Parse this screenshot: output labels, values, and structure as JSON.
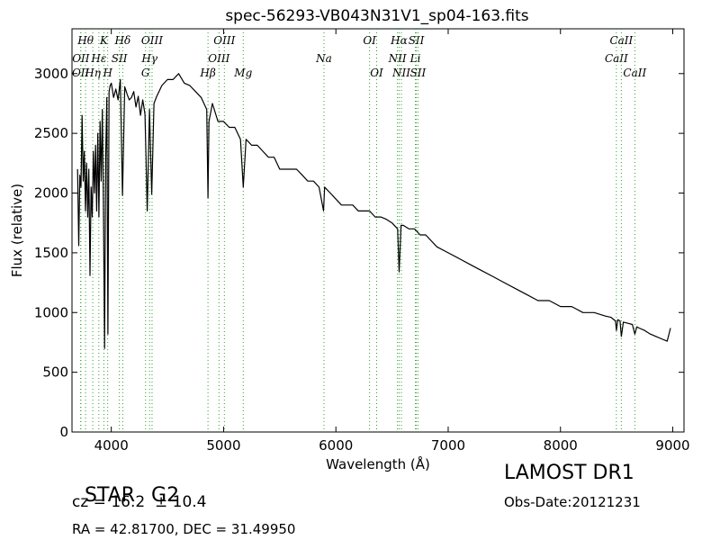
{
  "chart_data": {
    "type": "line",
    "title": "spec-56293-VB043N31V1_sp04-163.fits",
    "xlabel": "Wavelength (Å)",
    "ylabel": "Flux (relative)",
    "xlim": [
      3650,
      9100
    ],
    "ylim": [
      0,
      3375
    ],
    "xticks": [
      4000,
      5000,
      6000,
      7000,
      8000,
      9000
    ],
    "yticks": [
      0,
      500,
      1000,
      1500,
      2000,
      2500,
      3000
    ],
    "grid": false,
    "line_color": "#000000",
    "marker_color": "#2ca02c",
    "series": [
      {
        "x": [
          3700,
          3710,
          3720,
          3730,
          3740,
          3750,
          3760,
          3770,
          3780,
          3790,
          3800,
          3810,
          3820,
          3830,
          3840,
          3850,
          3860,
          3870,
          3880,
          3890,
          3900,
          3910,
          3920,
          3930,
          3940,
          3950,
          3960,
          3970,
          3980,
          3990,
          4000,
          4020,
          4040,
          4060,
          4080,
          4100,
          4120,
          4140,
          4160,
          4180,
          4200,
          4220,
          4240,
          4260,
          4280,
          4300,
          4320,
          4340,
          4360,
          4380,
          4400,
          4450,
          4500,
          4550,
          4600,
          4650,
          4700,
          4750,
          4800,
          4850,
          4861,
          4870,
          4900,
          4950,
          5000,
          5050,
          5100,
          5150,
          5175,
          5200,
          5250,
          5300,
          5350,
          5400,
          5450,
          5500,
          5550,
          5600,
          5650,
          5700,
          5750,
          5800,
          5850,
          5890,
          5900,
          5950,
          6000,
          6050,
          6100,
          6150,
          6200,
          6250,
          6300,
          6350,
          6400,
          6450,
          6500,
          6550,
          6563,
          6580,
          6600,
          6650,
          6700,
          6750,
          6800,
          6900,
          7000,
          7100,
          7200,
          7300,
          7400,
          7500,
          7600,
          7700,
          7800,
          7900,
          8000,
          8100,
          8200,
          8300,
          8400,
          8450,
          8490,
          8498,
          8510,
          8530,
          8542,
          8560,
          8600,
          8640,
          8662,
          8680,
          8700,
          8750,
          8800,
          8850,
          8900,
          8950,
          8980
        ],
        "y": [
          2200,
          1560,
          2150,
          2050,
          2650,
          2100,
          2350,
          1850,
          2250,
          1800,
          2200,
          1310,
          2050,
          1800,
          2350,
          2000,
          2400,
          1850,
          2500,
          1800,
          2600,
          2100,
          2700,
          1900,
          700,
          2300,
          2800,
          820,
          2850,
          2900,
          2920,
          2800,
          2870,
          2780,
          2950,
          1980,
          2890,
          2830,
          2780,
          2800,
          2850,
          2720,
          2810,
          2650,
          2780,
          2660,
          1850,
          2700,
          1990,
          2750,
          2800,
          2900,
          2950,
          2950,
          3000,
          2920,
          2900,
          2850,
          2800,
          2700,
          1960,
          2600,
          2750,
          2600,
          2600,
          2550,
          2550,
          2450,
          2050,
          2450,
          2400,
          2400,
          2350,
          2300,
          2300,
          2200,
          2200,
          2200,
          2200,
          2150,
          2100,
          2100,
          2050,
          1850,
          2050,
          2000,
          1950,
          1900,
          1900,
          1900,
          1850,
          1850,
          1850,
          1800,
          1800,
          1780,
          1750,
          1700,
          1340,
          1730,
          1730,
          1700,
          1700,
          1650,
          1650,
          1550,
          1500,
          1450,
          1400,
          1350,
          1300,
          1250,
          1200,
          1150,
          1100,
          1100,
          1050,
          1050,
          1000,
          1000,
          970,
          960,
          930,
          850,
          940,
          930,
          800,
          920,
          910,
          900,
          820,
          880,
          870,
          850,
          820,
          800,
          780,
          760,
          870
        ]
      }
    ],
    "line_markers": [
      {
        "name": "OII",
        "wl": 3727,
        "row": 2
      },
      {
        "name": "OII",
        "wl": 3729,
        "row": 1
      },
      {
        "name": "Hθ",
        "wl": 3771,
        "row": 0
      },
      {
        "name": "Hη",
        "wl": 3835,
        "row": 2
      },
      {
        "name": "Hε",
        "wl": 3889,
        "row": 1
      },
      {
        "name": "K",
        "wl": 3934,
        "row": 0
      },
      {
        "name": "H",
        "wl": 3968,
        "row": 2
      },
      {
        "name": "SII",
        "wl": 4072,
        "row": 1
      },
      {
        "name": "Hδ",
        "wl": 4102,
        "row": 0
      },
      {
        "name": "G",
        "wl": 4305,
        "row": 2
      },
      {
        "name": "Hγ",
        "wl": 4341,
        "row": 1
      },
      {
        "name": "OIII",
        "wl": 4363,
        "row": 0
      },
      {
        "name": "Hβ",
        "wl": 4861,
        "row": 2
      },
      {
        "name": "OIII",
        "wl": 4959,
        "row": 1
      },
      {
        "name": "OIII",
        "wl": 5007,
        "row": 0
      },
      {
        "name": "Mg",
        "wl": 5175,
        "row": 2
      },
      {
        "name": "Na",
        "wl": 5894,
        "row": 1
      },
      {
        "name": "OI",
        "wl": 6300,
        "row": 0
      },
      {
        "name": "OI",
        "wl": 6363,
        "row": 2
      },
      {
        "name": "NII",
        "wl": 6548,
        "row": 1
      },
      {
        "name": "Hα",
        "wl": 6563,
        "row": 0
      },
      {
        "name": "NII",
        "wl": 6583,
        "row": 2
      },
      {
        "name": "Li",
        "wl": 6708,
        "row": 1
      },
      {
        "name": "SII",
        "wl": 6716,
        "row": 0
      },
      {
        "name": "SII",
        "wl": 6731,
        "row": 2
      },
      {
        "name": "CaII",
        "wl": 8498,
        "row": 1
      },
      {
        "name": "CaII",
        "wl": 8542,
        "row": 0
      },
      {
        "name": "CaII",
        "wl": 8662,
        "row": 2
      }
    ]
  },
  "info": {
    "class_label": "STAR",
    "subclass_label": "G2",
    "survey": "LAMOST DR1",
    "cz": "cz = 16.2  ± 10.4",
    "obs_date": "Obs-Date:20121231",
    "coords": "RA = 42.81700, DEC = 31.49950"
  }
}
